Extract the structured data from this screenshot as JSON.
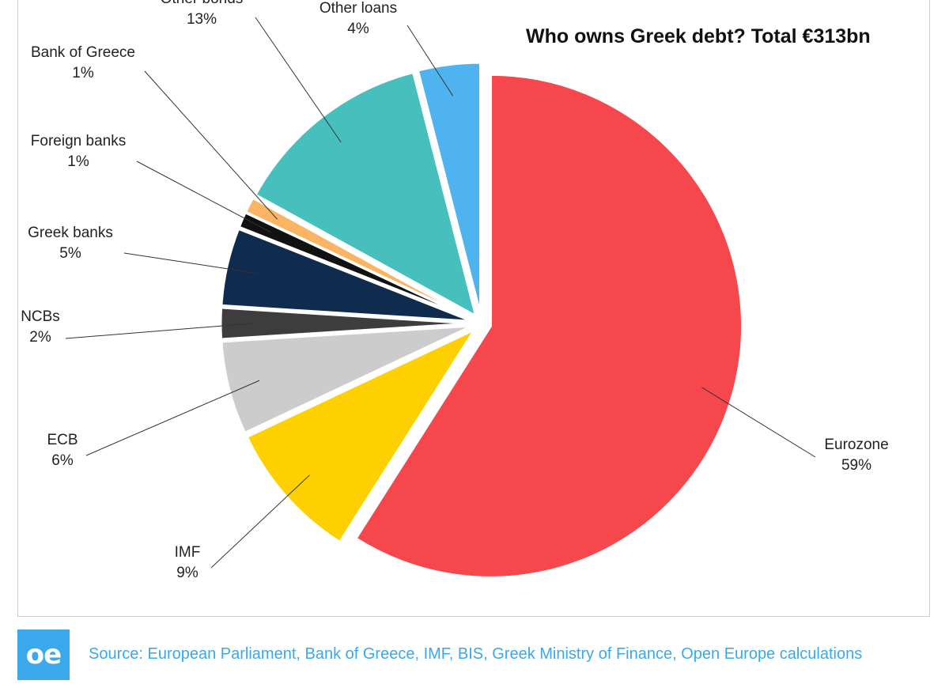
{
  "chart_data": {
    "type": "pie",
    "title": "Who owns Greek debt? Total €313bn",
    "slices": [
      {
        "name": "Eurozone",
        "value": 59,
        "label": "59%",
        "color": "#f5474c"
      },
      {
        "name": "IMF",
        "value": 9,
        "label": "9%",
        "color": "#ffd000"
      },
      {
        "name": "ECB",
        "value": 6,
        "label": "6%",
        "color": "#cccccc"
      },
      {
        "name": "NCBs",
        "value": 2,
        "label": "2%",
        "color": "#3d3d3d"
      },
      {
        "name": "Greek banks",
        "value": 5,
        "label": "5%",
        "color": "#0f2b4d"
      },
      {
        "name": "Foreign banks",
        "value": 1,
        "label": "1%",
        "color": "#111111"
      },
      {
        "name": "Bank of Greece",
        "value": 1,
        "label": "1%",
        "color": "#fbb463"
      },
      {
        "name": "Other bonds",
        "value": 13,
        "label": "13%",
        "color": "#47bfbd"
      },
      {
        "name": "Other loans",
        "value": 4,
        "label": "4%",
        "color": "#4fb3f0"
      }
    ],
    "legend": "none"
  },
  "footer": {
    "logo_text": "oe",
    "source": "Source: European Parliament, Bank of Greece, IMF, BIS, Greek Ministry of Finance, Open Europe calculations"
  }
}
